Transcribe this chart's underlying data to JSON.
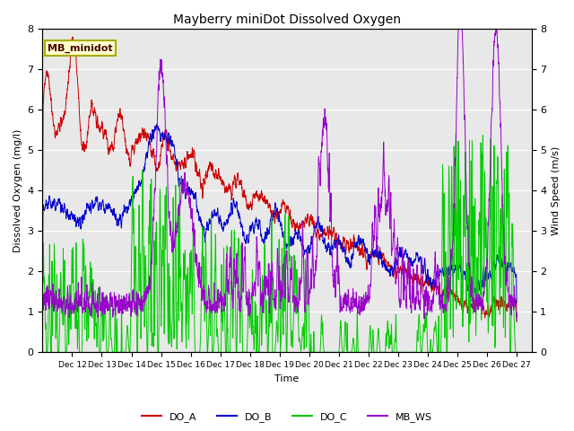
{
  "title": "Mayberry miniDot Dissolved Oxygen",
  "xlabel": "Time",
  "ylabel_left": "Dissolved Oxygen (mg/l)",
  "ylabel_right": "Wind Speed (m/s)",
  "ylim": [
    0.0,
    8.0
  ],
  "yticks": [
    0.0,
    1.0,
    2.0,
    3.0,
    4.0,
    5.0,
    6.0,
    7.0,
    8.0
  ],
  "xtick_labels": [
    "Dec 12",
    "Dec 13",
    "Dec 14",
    "Dec 15",
    "Dec 16",
    "Dec 17",
    "Dec 18",
    "Dec 19",
    "Dec 20",
    "Dec 21",
    "Dec 22",
    "Dec 23",
    "Dec 24",
    "Dec 25",
    "Dec 26",
    "Dec 27"
  ],
  "color_DOA": "#cc0000",
  "color_DOB": "#0000cc",
  "color_DOC": "#00cc00",
  "color_MBWS": "#9900cc",
  "legend_label": "MB_minidot",
  "legend_bg": "#ffffcc",
  "legend_edge": "#aaaa00",
  "series_labels": [
    "DO_A",
    "DO_B",
    "DO_C",
    "MB_WS"
  ],
  "background_color": "#e8e8e8",
  "n_points": 3600,
  "figsize": [
    6.4,
    4.8
  ],
  "dpi": 100
}
